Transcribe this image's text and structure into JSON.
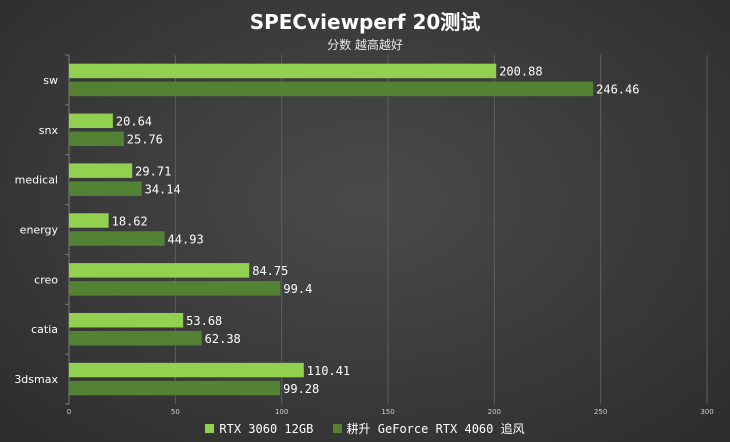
{
  "chart_data": {
    "type": "bar",
    "orientation": "horizontal",
    "title": "SPECviewperf 20测试",
    "subtitle": "分数 越高越好",
    "categories": [
      "sw",
      "snx",
      "medical",
      "energy",
      "creo",
      "catia",
      "3dsmax"
    ],
    "series": [
      {
        "name": "RTX 3060 12GB",
        "color": "#92d050",
        "values": [
          200.88,
          20.64,
          29.71,
          18.62,
          84.75,
          53.68,
          110.41
        ]
      },
      {
        "name": "耕升 GeForce RTX 4060 追风",
        "color": "#548235",
        "values": [
          246.46,
          25.76,
          34.14,
          44.93,
          99.4,
          62.38,
          99.28
        ]
      }
    ],
    "data_labels": [
      [
        "200.88",
        "20.64",
        "29.71",
        "18.62",
        "84.75",
        "53.68",
        "110.41"
      ],
      [
        "246.46",
        "25.76",
        "34.14",
        "44.93",
        "99.4",
        "62.38",
        "99.28"
      ]
    ],
    "xlim": [
      0,
      300
    ],
    "xticks": [
      "0",
      "50",
      "100",
      "150",
      "200",
      "250",
      "300"
    ],
    "grid": true,
    "legend_position": "bottom"
  }
}
